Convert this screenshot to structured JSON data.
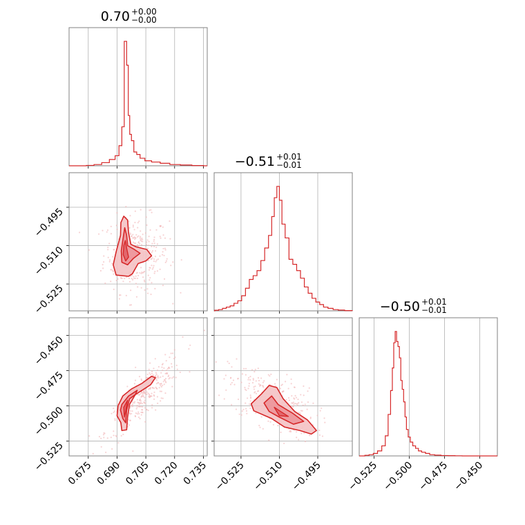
{
  "chart_data": {
    "type": "corner",
    "color": "#d62728",
    "fill_color": "#f4c2c4",
    "point_color": "#f2b6b8",
    "grid": true,
    "parameters": [
      {
        "title": {
          "median": "0.70",
          "upper": "+0.00",
          "lower": "−0.00"
        },
        "range": [
          0.665,
          0.737
        ],
        "ticks": [
          0.675,
          0.69,
          0.705,
          0.72,
          0.735
        ],
        "tick_labels": [
          "0.675",
          "0.690",
          "0.705",
          "0.720",
          "0.735"
        ],
        "hist_x": [
          0.676,
          0.68,
          0.684,
          0.688,
          0.69,
          0.692,
          0.693,
          0.6945,
          0.6955,
          0.6962,
          0.697,
          0.698,
          0.6995,
          0.701,
          0.703,
          0.706,
          0.71,
          0.715,
          0.72,
          0.726,
          0.732
        ],
        "hist_y": [
          0.003,
          0.01,
          0.025,
          0.05,
          0.08,
          0.16,
          0.31,
          0.99,
          0.8,
          0.4,
          0.25,
          0.2,
          0.11,
          0.09,
          0.06,
          0.04,
          0.03,
          0.02,
          0.01,
          0.006,
          0.002
        ]
      },
      {
        "title": {
          "median": "−0.51",
          "upper": "+0.01",
          "lower": "−0.01"
        },
        "range": [
          -0.5355,
          -0.4815
        ],
        "ticks": [
          -0.525,
          -0.51,
          -0.495
        ],
        "tick_labels": [
          "−0.525",
          "−0.510",
          "−0.495"
        ],
        "hist_x": [
          -0.5345,
          -0.533,
          -0.5315,
          -0.53,
          -0.5285,
          -0.527,
          -0.5255,
          -0.524,
          -0.5225,
          -0.521,
          -0.5195,
          -0.518,
          -0.5165,
          -0.515,
          -0.5135,
          -0.5125,
          -0.5115,
          -0.5105,
          -0.5095,
          -0.5085,
          -0.507,
          -0.5055,
          -0.504,
          -0.5025,
          -0.501,
          -0.4995,
          -0.498,
          -0.4965,
          -0.495,
          -0.4935,
          -0.492,
          -0.49,
          -0.488,
          -0.486,
          -0.483
        ],
        "hist_y": [
          0.005,
          0.01,
          0.02,
          0.03,
          0.04,
          0.06,
          0.08,
          0.12,
          0.18,
          0.25,
          0.28,
          0.32,
          0.4,
          0.5,
          0.6,
          0.75,
          0.9,
          0.99,
          0.88,
          0.69,
          0.58,
          0.41,
          0.37,
          0.32,
          0.26,
          0.19,
          0.14,
          0.1,
          0.07,
          0.05,
          0.03,
          0.02,
          0.01,
          0.006,
          0.002
        ]
      },
      {
        "title": {
          "median": "−0.50",
          "upper": "+0.01",
          "lower": "−0.01"
        },
        "range": [
          -0.5355,
          -0.4375
        ],
        "ticks": [
          -0.525,
          -0.5,
          -0.475,
          -0.45
        ],
        "tick_labels": [
          "−0.525",
          "−0.500",
          "−0.475",
          "−0.450"
        ],
        "hist_x": [
          -0.53,
          -0.527,
          -0.524,
          -0.521,
          -0.518,
          -0.516,
          -0.514,
          -0.5125,
          -0.5115,
          -0.5105,
          -0.5095,
          -0.5085,
          -0.5075,
          -0.5065,
          -0.5055,
          -0.5045,
          -0.5035,
          -0.5025,
          -0.5015,
          -0.5,
          -0.4985,
          -0.4965,
          -0.4945,
          -0.4925,
          -0.49,
          -0.487,
          -0.484,
          -0.48,
          -0.475,
          -0.47,
          -0.465
        ],
        "hist_y": [
          0.005,
          0.01,
          0.02,
          0.04,
          0.08,
          0.16,
          0.33,
          0.52,
          0.7,
          0.9,
          0.99,
          0.91,
          0.87,
          0.78,
          0.6,
          0.53,
          0.43,
          0.31,
          0.21,
          0.15,
          0.11,
          0.08,
          0.06,
          0.04,
          0.03,
          0.02,
          0.01,
          0.006,
          0.003,
          0.002,
          0.001
        ]
      }
    ],
    "pairs": [
      {
        "x_param": 0,
        "y_param": 1,
        "scatter_center": [
          0.7,
          -0.5135
        ],
        "scatter_sigma": [
          0.0085,
          0.0075
        ],
        "scatter_count": 320,
        "contour_outer": [
          [
            0.6935,
            -0.4985
          ],
          [
            0.6955,
            -0.5
          ],
          [
            0.696,
            -0.505
          ],
          [
            0.6972,
            -0.5095
          ],
          [
            0.7,
            -0.5105
          ],
          [
            0.7055,
            -0.5115
          ],
          [
            0.708,
            -0.514
          ],
          [
            0.705,
            -0.516
          ],
          [
            0.701,
            -0.517
          ],
          [
            0.698,
            -0.521
          ],
          [
            0.696,
            -0.522
          ],
          [
            0.6895,
            -0.5215
          ],
          [
            0.688,
            -0.5175
          ],
          [
            0.6895,
            -0.5125
          ],
          [
            0.6918,
            -0.506
          ],
          [
            0.692,
            -0.501
          ]
        ],
        "contour_inner": [
          [
            0.694,
            -0.503
          ],
          [
            0.695,
            -0.506
          ],
          [
            0.6955,
            -0.51
          ],
          [
            0.699,
            -0.5115
          ],
          [
            0.702,
            -0.513
          ],
          [
            0.6985,
            -0.515
          ],
          [
            0.6955,
            -0.5175
          ],
          [
            0.6925,
            -0.5165
          ],
          [
            0.6922,
            -0.512
          ],
          [
            0.693,
            -0.508
          ]
        ],
        "contour_core": [
          [
            0.6943,
            -0.508
          ],
          [
            0.695,
            -0.511
          ],
          [
            0.696,
            -0.5145
          ],
          [
            0.6945,
            -0.516
          ],
          [
            0.6932,
            -0.5135
          ],
          [
            0.6935,
            -0.51
          ]
        ]
      },
      {
        "x_param": 0,
        "y_param": 2,
        "scatter_center": [
          0.704,
          -0.493
        ],
        "scatter_sigma": [
          0.01,
          0.015
        ],
        "scatter_corr": 0.85,
        "scatter_count": 320,
        "contour_outer": [
          [
            0.6905,
            -0.5
          ],
          [
            0.693,
            -0.493
          ],
          [
            0.6975,
            -0.488
          ],
          [
            0.703,
            -0.484
          ],
          [
            0.708,
            -0.479
          ],
          [
            0.71,
            -0.48
          ],
          [
            0.7075,
            -0.485
          ],
          [
            0.703,
            -0.489
          ],
          [
            0.6995,
            -0.492
          ],
          [
            0.6965,
            -0.499
          ],
          [
            0.6955,
            -0.508
          ],
          [
            0.695,
            -0.517
          ],
          [
            0.6925,
            -0.5175
          ],
          [
            0.692,
            -0.512
          ],
          [
            0.69,
            -0.507
          ]
        ],
        "contour_inner": [
          [
            0.6925,
            -0.499
          ],
          [
            0.696,
            -0.493
          ],
          [
            0.7005,
            -0.489
          ],
          [
            0.6995,
            -0.492
          ],
          [
            0.6965,
            -0.495
          ],
          [
            0.695,
            -0.503
          ],
          [
            0.6945,
            -0.512
          ],
          [
            0.693,
            -0.509
          ],
          [
            0.6918,
            -0.503
          ]
        ],
        "contour_core": [
          [
            0.6935,
            -0.501
          ],
          [
            0.6955,
            -0.496
          ],
          [
            0.6945,
            -0.504
          ],
          [
            0.6938,
            -0.508
          ]
        ]
      },
      {
        "x_param": 1,
        "y_param": 2,
        "scatter_center": [
          -0.5125,
          -0.497
        ],
        "scatter_sigma": [
          0.0085,
          0.012
        ],
        "scatter_corr": -0.55,
        "scatter_count": 320,
        "contour_outer": [
          [
            -0.521,
            -0.4985
          ],
          [
            -0.517,
            -0.4915
          ],
          [
            -0.514,
            -0.4855
          ],
          [
            -0.511,
            -0.487
          ],
          [
            -0.5085,
            -0.495
          ],
          [
            -0.504,
            -0.504
          ],
          [
            -0.499,
            -0.51
          ],
          [
            -0.4955,
            -0.5175
          ],
          [
            -0.4975,
            -0.52
          ],
          [
            -0.502,
            -0.5175
          ],
          [
            -0.508,
            -0.515
          ],
          [
            -0.513,
            -0.509
          ],
          [
            -0.52,
            -0.5035
          ]
        ],
        "contour_inner": [
          [
            -0.516,
            -0.498
          ],
          [
            -0.513,
            -0.493
          ],
          [
            -0.5105,
            -0.499
          ],
          [
            -0.505,
            -0.505
          ],
          [
            -0.5005,
            -0.511
          ],
          [
            -0.5045,
            -0.513
          ],
          [
            -0.51,
            -0.508
          ],
          [
            -0.514,
            -0.504
          ]
        ],
        "contour_core": [
          [
            -0.512,
            -0.501
          ],
          [
            -0.5095,
            -0.504
          ],
          [
            -0.5065,
            -0.5075
          ],
          [
            -0.51,
            -0.507
          ]
        ]
      }
    ]
  }
}
